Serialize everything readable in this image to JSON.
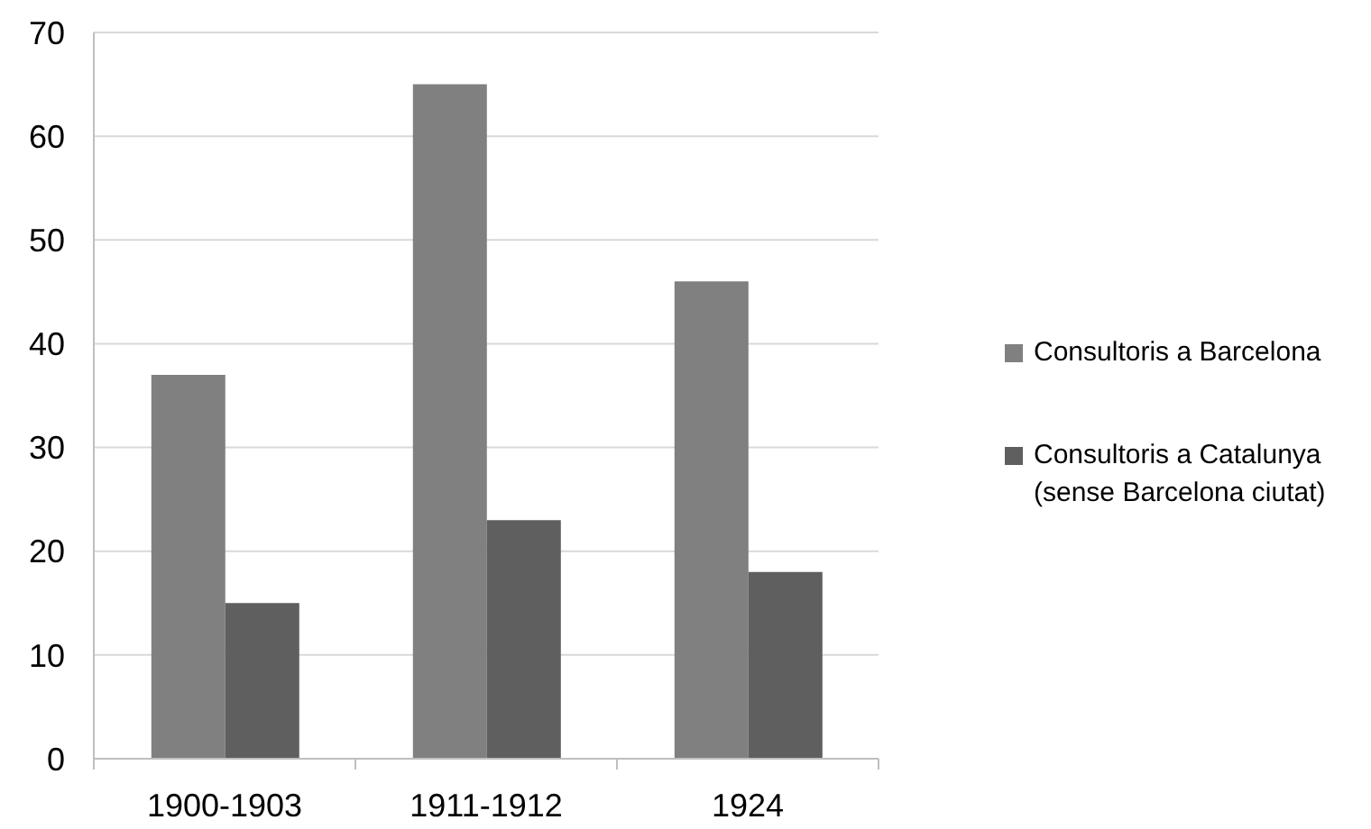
{
  "chart_data": {
    "type": "bar",
    "categories": [
      "1900-1903",
      "1911-1912",
      "1924"
    ],
    "series": [
      {
        "name": "Consultoris a Barcelona",
        "color": "#808080",
        "values": [
          37,
          65,
          46
        ]
      },
      {
        "name": "Consultoris a Catalunya (sense Barcelona ciutat)",
        "color": "#5f5f5f",
        "values": [
          15,
          23,
          18
        ]
      }
    ],
    "ylim": [
      0,
      70
    ],
    "yticks": [
      0,
      10,
      20,
      30,
      40,
      50,
      60,
      70
    ],
    "grid": "y",
    "legend": "right"
  }
}
